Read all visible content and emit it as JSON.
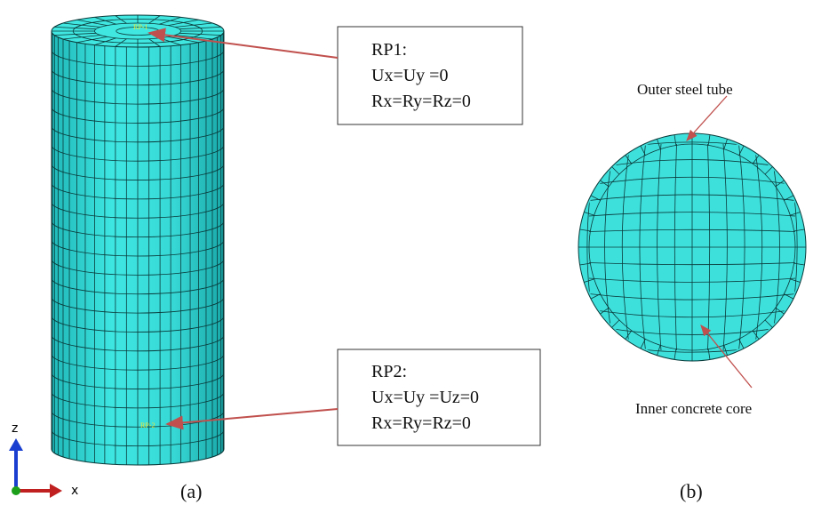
{
  "panel_a": {
    "rp1_marker": "RP-1",
    "rp2_marker": "RP-2",
    "rp1_box": {
      "title": "RP1:",
      "line1": "Ux=Uy =0",
      "line2": "Rx=Ry=Rz=0"
    },
    "rp2_box": {
      "title": "RP2:",
      "line1": "Ux=Uy =Uz=0",
      "line2": "Rx=Ry=Rz=0"
    },
    "axis_z": "z",
    "axis_x": "x",
    "caption": "(a)"
  },
  "panel_b": {
    "outer_label": "Outer steel tube",
    "inner_label": "Inner concrete core",
    "caption": "(b)"
  }
}
